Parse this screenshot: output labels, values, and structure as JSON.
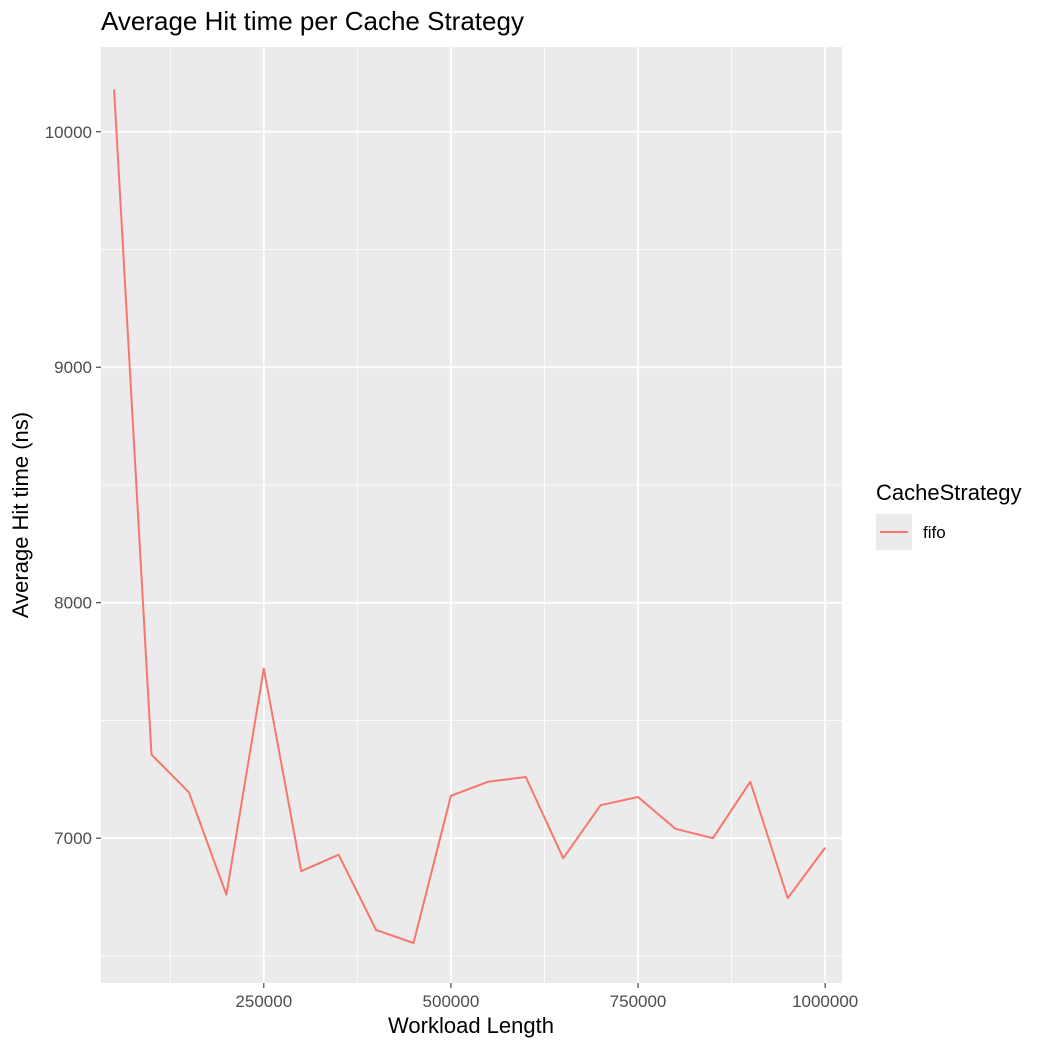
{
  "chart_data": {
    "type": "line",
    "title": "Average Hit time per Cache Strategy",
    "xlabel": "Workload Length",
    "ylabel": "Average Hit time (ns)",
    "xlim": [
      32500,
      1022500
    ],
    "ylim": [
      6385,
      10360
    ],
    "x_ticks": [
      250000,
      500000,
      750000,
      1000000
    ],
    "x_tick_labels": [
      "250000",
      "500000",
      "750000",
      "1000000"
    ],
    "y_ticks": [
      7000,
      8000,
      9000,
      10000
    ],
    "y_tick_labels": [
      "7000",
      "8000",
      "9000",
      "10000"
    ],
    "grid": true,
    "legend": {
      "title": "CacheStrategy",
      "position": "right"
    },
    "series": [
      {
        "name": "fifo",
        "color": "#F8766D",
        "x": [
          50000,
          100000,
          150000,
          200000,
          250000,
          300000,
          350000,
          400000,
          450000,
          500000,
          550000,
          600000,
          650000,
          700000,
          750000,
          800000,
          850000,
          900000,
          950000,
          1000000
        ],
        "y": [
          10180,
          7355,
          7195,
          6760,
          7720,
          6860,
          6930,
          6610,
          6555,
          7180,
          7240,
          7260,
          6915,
          7140,
          7175,
          7040,
          7000,
          7240,
          6745,
          6960
        ]
      }
    ]
  }
}
